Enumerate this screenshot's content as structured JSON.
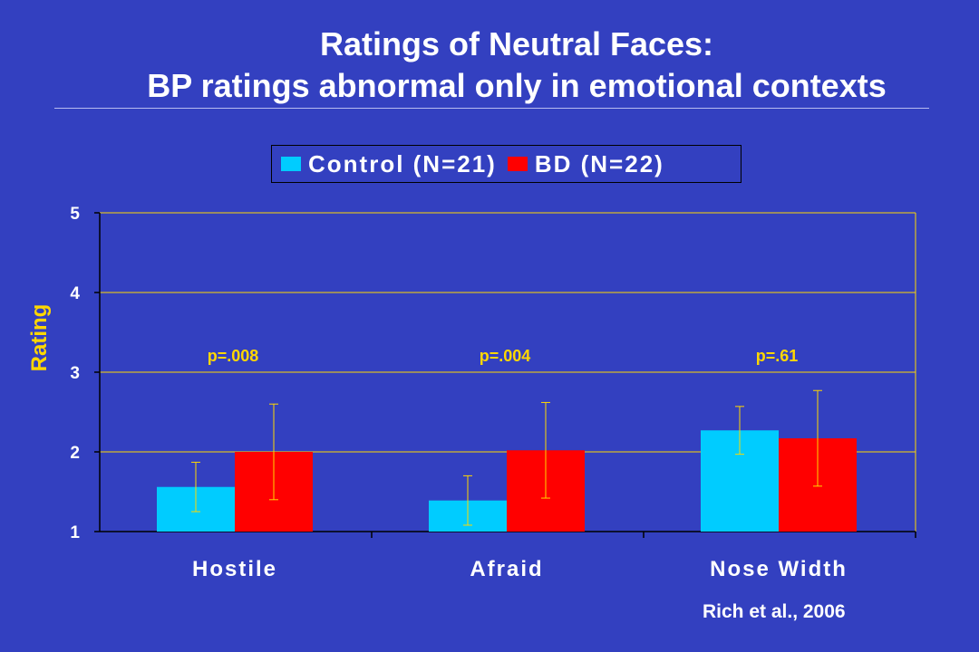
{
  "title_line1": "Ratings of Neutral Faces:",
  "title_line2": "BP ratings abnormal only in emotional contexts",
  "citation": "Rich et al., 2006",
  "colors": {
    "background": "#3340c0",
    "control": "#00ccff",
    "bd": "#ff0000",
    "gridline": "#ffd700",
    "errorbar": "#ffd700"
  },
  "chart_data": {
    "type": "bar",
    "categories": [
      "Hostile",
      "Afraid",
      "Nose Width"
    ],
    "series": [
      {
        "name": "Control (N=21)",
        "values": [
          1.56,
          1.39,
          2.27
        ],
        "error": [
          0.31,
          0.31,
          0.3
        ]
      },
      {
        "name": "BD (N=22)",
        "values": [
          2.0,
          2.02,
          2.17
        ],
        "error": [
          0.6,
          0.6,
          0.6
        ]
      }
    ],
    "annotations": [
      "p=.008",
      "p=.004",
      "p=.61"
    ],
    "ylabel": "Rating",
    "ylim": [
      1,
      5
    ],
    "yticks": [
      "1",
      "2",
      "3",
      "4",
      "5"
    ],
    "grid": true,
    "legend_position": "top"
  }
}
